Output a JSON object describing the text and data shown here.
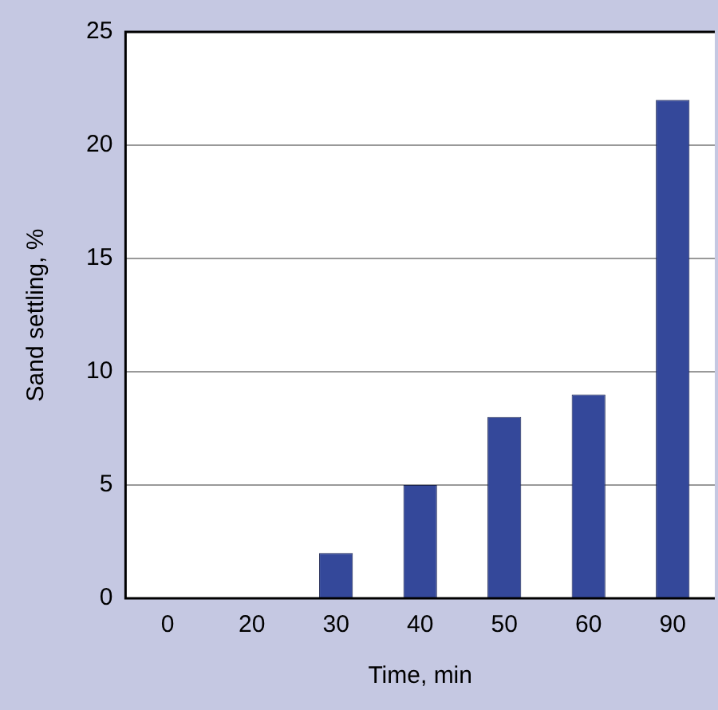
{
  "chart_data": {
    "type": "bar",
    "xlabel": "Time, min",
    "ylabel": "Sand settling, %",
    "categories": [
      "0",
      "20",
      "30",
      "40",
      "50",
      "60",
      "90"
    ],
    "values": [
      0,
      0,
      2,
      5,
      8,
      9,
      22
    ],
    "color": "#34489a",
    "ylim": [
      0,
      25
    ],
    "yticks": [
      0,
      5,
      10,
      15,
      20,
      25
    ],
    "grid": "y",
    "legend": false
  }
}
